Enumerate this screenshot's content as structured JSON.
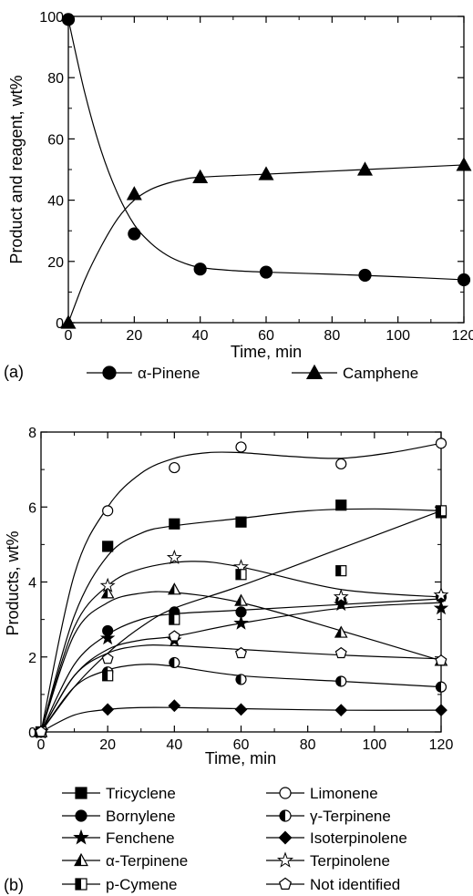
{
  "chart_data": [
    {
      "panel": "(a)",
      "type": "line",
      "xlabel": "Time, min",
      "ylabel": "Product and reagent, wt%",
      "xlim": [
        0,
        120
      ],
      "ylim": [
        0,
        100
      ],
      "xticks": [
        "0",
        "20",
        "40",
        "60",
        "80",
        "100",
        "120"
      ],
      "yticks": [
        "0",
        "20",
        "40",
        "60",
        "80",
        "100"
      ],
      "grid": false,
      "legend": "bottom",
      "series": [
        {
          "name": "α-Pinene",
          "marker": "circle-filled",
          "x": [
            0,
            20,
            40,
            60,
            90,
            120
          ],
          "values": [
            99,
            29,
            17.5,
            16.5,
            15.5,
            14
          ],
          "curve": [
            [
              0,
              99
            ],
            [
              5,
              75
            ],
            [
              10,
              56
            ],
            [
              15,
              42
            ],
            [
              20,
              32
            ],
            [
              25,
              26
            ],
            [
              30,
              22
            ],
            [
              35,
              19.5
            ],
            [
              40,
              18
            ],
            [
              50,
              17
            ],
            [
              60,
              16.5
            ],
            [
              80,
              15.8
            ],
            [
              100,
              15
            ],
            [
              120,
              14
            ]
          ]
        },
        {
          "name": "Camphene",
          "marker": "triangle-filled",
          "x": [
            0,
            20,
            40,
            60,
            90,
            120
          ],
          "values": [
            0,
            42,
            47.5,
            48.5,
            50,
            51.5
          ],
          "curve": [
            [
              0,
              0
            ],
            [
              5,
              14
            ],
            [
              10,
              25
            ],
            [
              15,
              34
            ],
            [
              20,
              40
            ],
            [
              25,
              43.5
            ],
            [
              30,
              45.5
            ],
            [
              35,
              46.8
            ],
            [
              40,
              47.5
            ],
            [
              60,
              48.5
            ],
            [
              80,
              49.5
            ],
            [
              100,
              50.5
            ],
            [
              120,
              51.5
            ]
          ]
        }
      ]
    },
    {
      "panel": "(b)",
      "type": "line",
      "xlabel": "Time, min",
      "ylabel": "Products, wt%",
      "xlim": [
        0,
        120
      ],
      "ylim": [
        0,
        8
      ],
      "xticks": [
        "0",
        "20",
        "40",
        "60",
        "80",
        "100",
        "120"
      ],
      "yticks": [
        "0",
        "2",
        "4",
        "6",
        "8"
      ],
      "grid": false,
      "legend": "bottom",
      "series": [
        {
          "name": "Tricyclene",
          "marker": "square-filled",
          "x": [
            0,
            20,
            40,
            60,
            90,
            120
          ],
          "values": [
            0,
            4.95,
            5.55,
            5.6,
            6.05,
            5.85
          ],
          "curve": [
            [
              0,
              0
            ],
            [
              10,
              3.1
            ],
            [
              20,
              4.7
            ],
            [
              30,
              5.3
            ],
            [
              40,
              5.5
            ],
            [
              60,
              5.7
            ],
            [
              80,
              5.9
            ],
            [
              100,
              5.95
            ],
            [
              120,
              5.9
            ]
          ]
        },
        {
          "name": "Limonene",
          "marker": "circle-open",
          "x": [
            0,
            20,
            40,
            60,
            90,
            120
          ],
          "values": [
            0,
            5.9,
            7.05,
            7.6,
            7.15,
            7.7
          ],
          "curve": [
            [
              0,
              0
            ],
            [
              10,
              4.2
            ],
            [
              20,
              6.0
            ],
            [
              30,
              6.9
            ],
            [
              40,
              7.3
            ],
            [
              50,
              7.45
            ],
            [
              60,
              7.45
            ],
            [
              75,
              7.35
            ],
            [
              90,
              7.3
            ],
            [
              105,
              7.45
            ],
            [
              120,
              7.7
            ]
          ]
        },
        {
          "name": "Bornylene",
          "marker": "circle-filled",
          "x": [
            0,
            20,
            40,
            60,
            90,
            120
          ],
          "values": [
            0,
            2.7,
            3.2,
            3.2,
            3.5,
            3.6
          ],
          "curve": [
            [
              0,
              0
            ],
            [
              10,
              1.8
            ],
            [
              20,
              2.6
            ],
            [
              30,
              3.0
            ],
            [
              40,
              3.15
            ],
            [
              60,
              3.25
            ],
            [
              90,
              3.4
            ],
            [
              120,
              3.55
            ]
          ]
        },
        {
          "name": "γ-Terpinene",
          "marker": "circle-half",
          "x": [
            0,
            20,
            40,
            60,
            90,
            120
          ],
          "values": [
            0,
            1.6,
            1.85,
            1.4,
            1.35,
            1.2
          ],
          "curve": [
            [
              0,
              0
            ],
            [
              10,
              1.2
            ],
            [
              20,
              1.65
            ],
            [
              30,
              1.8
            ],
            [
              40,
              1.75
            ],
            [
              60,
              1.5
            ],
            [
              90,
              1.35
            ],
            [
              120,
              1.2
            ]
          ]
        },
        {
          "name": "Fenchene",
          "marker": "star-filled",
          "x": [
            0,
            20,
            40,
            60,
            90,
            120
          ],
          "values": [
            0,
            2.5,
            2.45,
            2.9,
            3.4,
            3.3
          ],
          "curve": [
            [
              0,
              0
            ],
            [
              10,
              1.5
            ],
            [
              20,
              2.2
            ],
            [
              30,
              2.45
            ],
            [
              40,
              2.55
            ],
            [
              60,
              2.9
            ],
            [
              90,
              3.3
            ],
            [
              120,
              3.45
            ]
          ]
        },
        {
          "name": "Isoterpinolene",
          "marker": "diamond-filled",
          "x": [
            0,
            20,
            40,
            60,
            90,
            120
          ],
          "values": [
            0,
            0.6,
            0.7,
            0.6,
            0.58,
            0.58
          ],
          "curve": [
            [
              0,
              0
            ],
            [
              10,
              0.45
            ],
            [
              20,
              0.6
            ],
            [
              30,
              0.65
            ],
            [
              40,
              0.65
            ],
            [
              60,
              0.62
            ],
            [
              90,
              0.58
            ],
            [
              120,
              0.58
            ]
          ]
        },
        {
          "name": "α-Terpinene",
          "marker": "triangle-half",
          "x": [
            0,
            20,
            40,
            60,
            90,
            120
          ],
          "values": [
            0,
            3.7,
            3.8,
            3.5,
            2.65,
            1.9
          ],
          "curve": [
            [
              0,
              0
            ],
            [
              10,
              2.6
            ],
            [
              20,
              3.45
            ],
            [
              30,
              3.7
            ],
            [
              40,
              3.72
            ],
            [
              60,
              3.45
            ],
            [
              90,
              2.7
            ],
            [
              120,
              1.9
            ]
          ]
        },
        {
          "name": "Terpinolene",
          "marker": "star-open",
          "x": [
            0,
            20,
            40,
            60,
            90,
            120
          ],
          "values": [
            0,
            3.9,
            4.65,
            4.4,
            3.6,
            3.65
          ],
          "curve": [
            [
              0,
              0
            ],
            [
              10,
              2.8
            ],
            [
              20,
              3.9
            ],
            [
              30,
              4.35
            ],
            [
              45,
              4.55
            ],
            [
              60,
              4.4
            ],
            [
              90,
              3.8
            ],
            [
              120,
              3.6
            ]
          ]
        },
        {
          "name": "p-Cymene",
          "marker": "square-half",
          "x": [
            0,
            20,
            40,
            60,
            90,
            120
          ],
          "values": [
            0,
            1.5,
            3.0,
            4.2,
            4.3,
            5.9
          ],
          "curve": [
            [
              0,
              0
            ],
            [
              10,
              1.2
            ],
            [
              20,
              2.1
            ],
            [
              30,
              2.8
            ],
            [
              40,
              3.3
            ],
            [
              60,
              3.9
            ],
            [
              90,
              4.9
            ],
            [
              120,
              5.9
            ]
          ]
        },
        {
          "name": "Not identified",
          "marker": "pentagon-open",
          "x": [
            0,
            20,
            40,
            60,
            90,
            120
          ],
          "values": [
            0,
            1.95,
            2.55,
            2.1,
            2.1,
            1.9
          ],
          "curve": [
            [
              0,
              0
            ],
            [
              10,
              1.5
            ],
            [
              20,
              2.1
            ],
            [
              30,
              2.3
            ],
            [
              40,
              2.3
            ],
            [
              60,
              2.2
            ],
            [
              90,
              2.05
            ],
            [
              120,
              1.95
            ]
          ]
        }
      ]
    }
  ]
}
